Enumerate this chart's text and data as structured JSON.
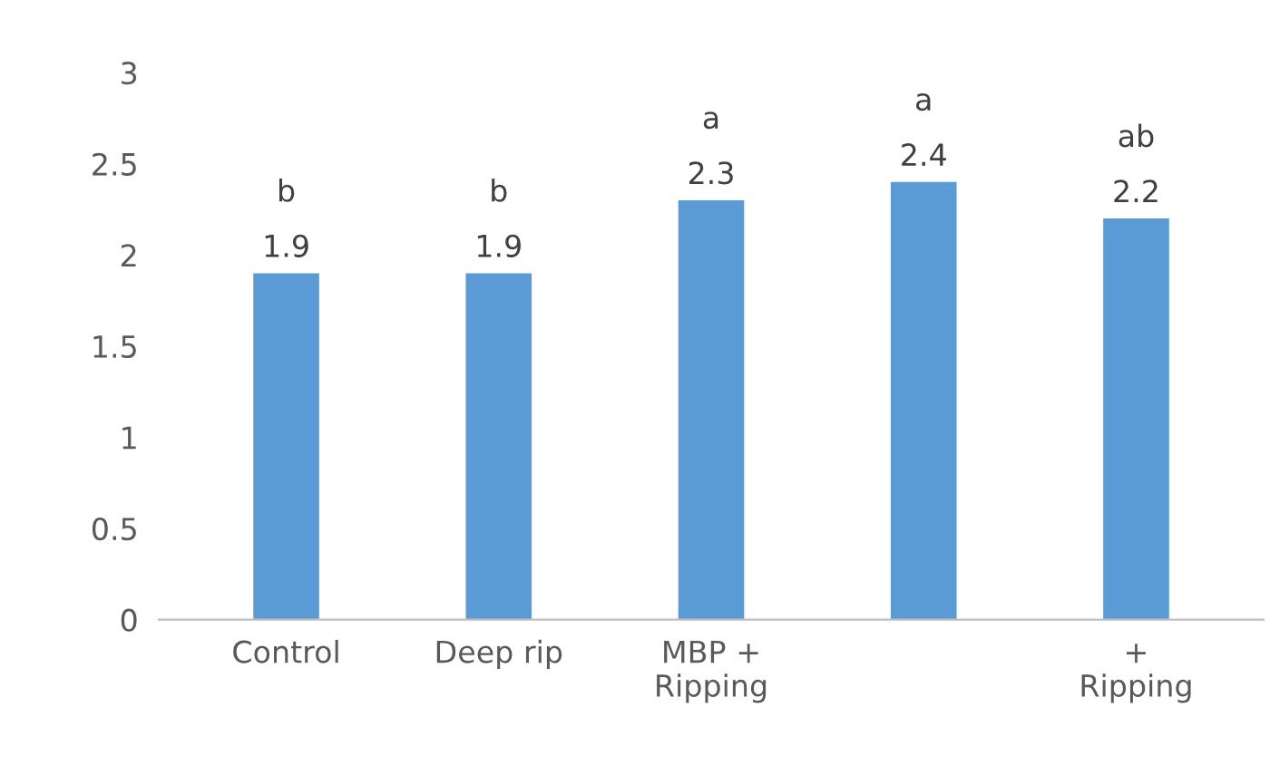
{
  "chart_data": {
    "type": "bar",
    "categories": [
      "Control",
      "Deep rip",
      "MBP +\nRipping",
      null,
      "+\nRipping"
    ],
    "values": [
      1.9,
      1.9,
      2.3,
      2.4,
      2.2
    ],
    "color": "#5b9bd5",
    "data_labels": true,
    "ylim": [
      0,
      3
    ],
    "yticks": [
      0,
      0.5,
      1,
      1.5,
      2,
      2.5,
      3
    ],
    "grid": false,
    "legend": false,
    "annotations": [
      "b",
      "b",
      "a",
      "a",
      "ab"
    ]
  }
}
